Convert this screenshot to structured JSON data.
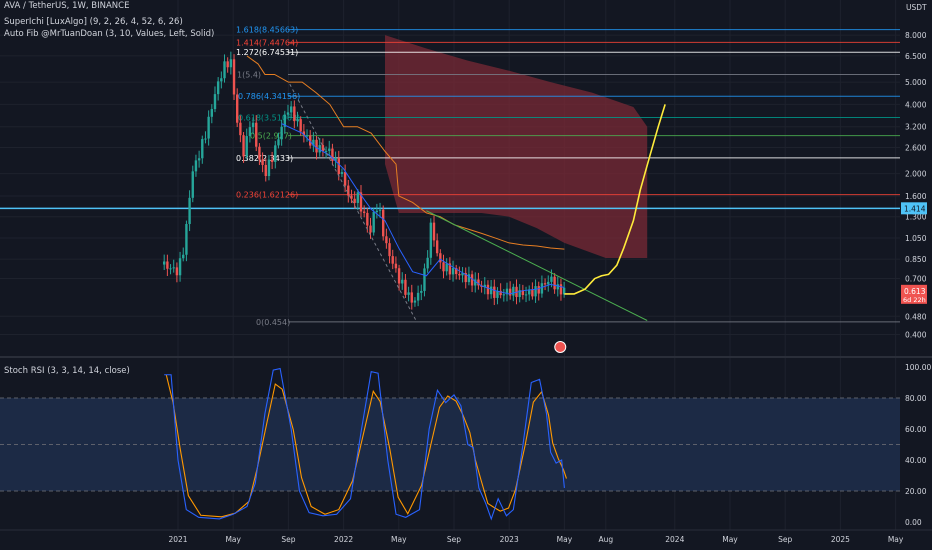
{
  "header": {
    "symbol_line": "AVA / TetherUS, 1W, BINANCE",
    "indicator1": "SuperIchi [LuxAlgo] (9, 2, 26, 4, 52, 6, 26)",
    "indicator2": "Auto Fib @MrTuanDoan (3, 10, Values, Left, Solid)"
  },
  "colors": {
    "background": "#131722",
    "up": "#26a69a",
    "down": "#ef5350",
    "text": "#d1d4dc",
    "grid": "#1e222d",
    "projection": "#ffeb3b",
    "trendline": "#4caf50",
    "kijun": "#e67e22",
    "tenkan": "#2962ff",
    "cloud": "#7a2a36",
    "rsi_k": "#2962ff",
    "rsi_d": "#ff9800",
    "rsi_band": "#1c2a45"
  },
  "chart_data": [
    {
      "type": "candlestick",
      "y_axis_label": "USDT",
      "y_scale": "log",
      "ylim": [
        0.36,
        10.5
      ],
      "y_ticks": [
        "8.000",
        "6.500",
        "5.000",
        "4.000",
        "3.200",
        "2.600",
        "2.000",
        "1.600",
        "1.300",
        "1.050",
        "0.850",
        "0.700",
        "0.480",
        "0.400"
      ],
      "x_ticks": [
        "2021",
        "May",
        "Sep",
        "2022",
        "May",
        "Sep",
        "2023",
        "May",
        "Aug",
        "2024",
        "May",
        "Sep",
        "2025",
        "May"
      ],
      "current_price": "0.613",
      "countdown": "6d 22h",
      "highlight_level": "1.414",
      "fib_levels": [
        {
          "label": "1.618(8.45663)",
          "value": 8.45663,
          "color": "#2196f3"
        },
        {
          "label": "1.414(7.44764)",
          "value": 7.44764,
          "color": "#f44336"
        },
        {
          "label": "1.272(6.74531)",
          "value": 6.74531,
          "color": "#ffffff"
        },
        {
          "label": "1(5.4)",
          "value": 5.4,
          "color": "#787b86"
        },
        {
          "label": "0.786(4.34156)",
          "value": 4.34156,
          "color": "#2196f3"
        },
        {
          "label": "0.618(3.51063)",
          "value": 3.51063,
          "color": "#009688"
        },
        {
          "label": "0.5(2.927)",
          "value": 2.927,
          "color": "#4caf50"
        },
        {
          "label": "0.382(2.3433)",
          "value": 2.3433,
          "color": "#ffffff"
        },
        {
          "label": "0.236(1.62126)",
          "value": 1.62126,
          "color": "#f44336"
        },
        {
          "label": "0(0.454)",
          "value": 0.454,
          "color": "#787b86"
        }
      ]
    },
    {
      "type": "line",
      "title": "Stoch RSI (3, 3, 14, 14, close)",
      "ylim": [
        0,
        100
      ],
      "y_ticks": [
        "100.00",
        "80.00",
        "60.00",
        "40.00",
        "20.00",
        "0.00"
      ],
      "upper_band": 80,
      "lower_band": 20
    }
  ]
}
